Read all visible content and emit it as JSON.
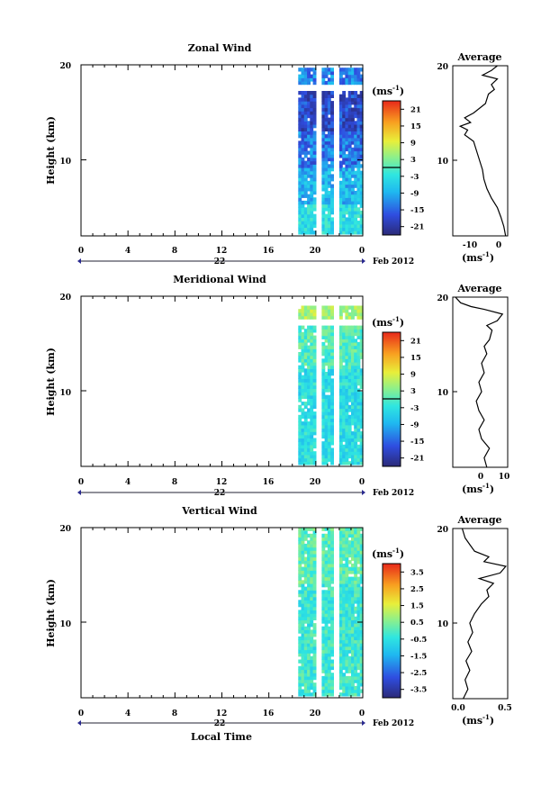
{
  "chart_data": [
    {
      "type": "heatmap",
      "title": "Zonal Wind",
      "ylabel": "Height (km)",
      "x_ticks": [
        "0",
        "4",
        "8",
        "12",
        "16",
        "20",
        "0"
      ],
      "y_ticks": [
        "20",
        "10"
      ],
      "date_axis": {
        "day": "22",
        "month_year": "Feb 2012"
      },
      "xlim": [
        0,
        24
      ],
      "ylim": [
        2,
        20
      ],
      "data_window_hours": [
        18.5,
        23.8
      ],
      "colorbar": {
        "unit": "(ms",
        "unit_exp": "-1",
        "ticks": [
          "21",
          "15",
          "9",
          "3",
          "-3",
          "-9",
          "-15",
          "-21"
        ],
        "range": [
          -24,
          24
        ]
      },
      "average": {
        "title": "Average",
        "x_ticks": [
          "-10",
          "0"
        ],
        "xlim": [
          -16,
          2.5
        ],
        "x_unit": "(ms",
        "x_unit_exp": "-1",
        "profile": [
          [
            1.8,
            2
          ],
          [
            1.2,
            3
          ],
          [
            0.2,
            4
          ],
          [
            -1,
            5
          ],
          [
            -3,
            6
          ],
          [
            -4.5,
            7
          ],
          [
            -5.5,
            8
          ],
          [
            -6,
            9
          ],
          [
            -7,
            10
          ],
          [
            -8,
            11
          ],
          [
            -9,
            12
          ],
          [
            -12,
            12.7
          ],
          [
            -11,
            13.2
          ],
          [
            -13.5,
            13.6
          ],
          [
            -10,
            14
          ],
          [
            -12,
            14.5
          ],
          [
            -9,
            15
          ],
          [
            -5,
            16
          ],
          [
            -4,
            17
          ],
          [
            -2,
            17.5
          ],
          [
            -3,
            18
          ],
          [
            -1,
            18.6
          ],
          [
            -6,
            19
          ],
          [
            -3,
            19.5
          ],
          [
            -1,
            20
          ]
        ]
      }
    },
    {
      "type": "heatmap",
      "title": "Meridional Wind",
      "ylabel": "Height (km)",
      "x_ticks": [
        "0",
        "4",
        "8",
        "12",
        "16",
        "20",
        "0"
      ],
      "y_ticks": [
        "20",
        "10"
      ],
      "date_axis": {
        "day": "22",
        "month_year": "Feb 2012"
      },
      "xlim": [
        0,
        24
      ],
      "ylim": [
        2,
        20
      ],
      "data_window_hours": [
        18.5,
        23.8
      ],
      "colorbar": {
        "unit": "(ms",
        "unit_exp": "-1",
        "ticks": [
          "21",
          "15",
          "9",
          "3",
          "-3",
          "-9",
          "-15",
          "-21"
        ],
        "range": [
          -24,
          24
        ]
      },
      "average": {
        "title": "Average",
        "x_ticks": [
          "0",
          "10"
        ],
        "xlim": [
          -9,
          12
        ],
        "x_unit": "(ms",
        "x_unit_exp": "-1",
        "profile": [
          [
            4,
            2
          ],
          [
            3,
            3
          ],
          [
            5,
            4
          ],
          [
            2,
            5
          ],
          [
            1,
            6
          ],
          [
            3,
            7
          ],
          [
            1,
            8
          ],
          [
            0,
            9
          ],
          [
            2,
            10
          ],
          [
            1,
            11
          ],
          [
            3,
            12
          ],
          [
            2,
            13
          ],
          [
            4,
            14
          ],
          [
            3,
            14.8
          ],
          [
            5,
            15.5
          ],
          [
            6,
            16.5
          ],
          [
            4,
            17
          ],
          [
            8,
            17.5
          ],
          [
            10,
            18.2
          ],
          [
            3,
            18.7
          ],
          [
            -2,
            19
          ],
          [
            -6,
            19.4
          ],
          [
            -8,
            20
          ]
        ]
      }
    },
    {
      "type": "heatmap",
      "title": "Vertical Wind",
      "ylabel": "Height (km)",
      "xlabel": "Local Time",
      "x_ticks": [
        "0",
        "4",
        "8",
        "12",
        "16",
        "20",
        "0"
      ],
      "y_ticks": [
        "20",
        "10"
      ],
      "date_axis": {
        "day": "22",
        "month_year": "Feb 2012"
      },
      "xlim": [
        0,
        24
      ],
      "ylim": [
        2,
        20
      ],
      "data_window_hours": [
        18.5,
        23.8
      ],
      "colorbar": {
        "unit": "(ms",
        "unit_exp": "-1",
        "ticks": [
          "3.5",
          "2.5",
          "1.5",
          "0.5",
          "-0.5",
          "-1.5",
          "-2.5",
          "-3.5"
        ],
        "range": [
          -4,
          4
        ]
      },
      "average": {
        "title": "Average",
        "x_ticks": [
          "0.0",
          "0.5"
        ],
        "xlim": [
          -0.08,
          0.5
        ],
        "x_unit": "(ms",
        "x_unit_exp": "-1",
        "profile": [
          [
            0.03,
            2
          ],
          [
            0.08,
            3
          ],
          [
            0.05,
            4
          ],
          [
            0.1,
            5
          ],
          [
            0.06,
            6
          ],
          [
            0.12,
            7
          ],
          [
            0.08,
            8
          ],
          [
            0.13,
            9
          ],
          [
            0.1,
            10
          ],
          [
            0.15,
            11
          ],
          [
            0.22,
            12
          ],
          [
            0.3,
            12.8
          ],
          [
            0.28,
            13.5
          ],
          [
            0.35,
            14.2
          ],
          [
            0.2,
            14.7
          ],
          [
            0.42,
            15.3
          ],
          [
            0.48,
            16
          ],
          [
            0.25,
            16.5
          ],
          [
            0.3,
            17
          ],
          [
            0.15,
            17.6
          ],
          [
            0.1,
            18.3
          ],
          [
            0.05,
            19
          ],
          [
            0.02,
            20
          ]
        ]
      }
    }
  ]
}
